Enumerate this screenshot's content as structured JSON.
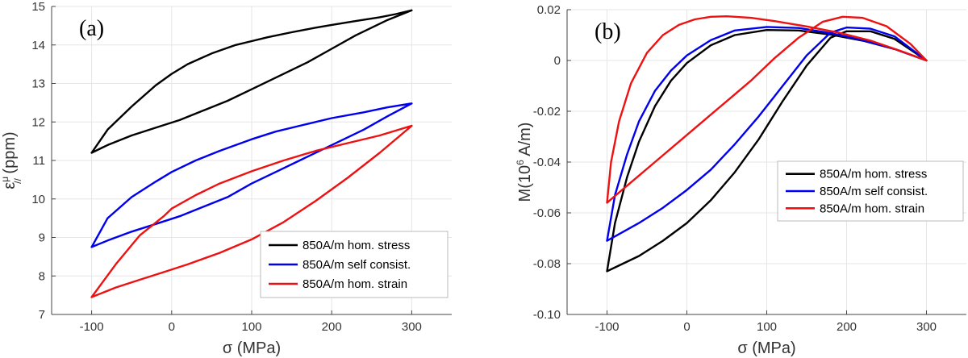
{
  "chart_data": [
    {
      "type": "line",
      "panel_label": "(a)",
      "title": "",
      "xlabel": "σ (MPa)",
      "ylabel": "ε//μ (ppm)",
      "ylabel_parts": {
        "main": "ε",
        "sup": "μ",
        "sub": "//",
        "unit": " (ppm)"
      },
      "xlim": [
        -150,
        350
      ],
      "ylim": [
        7,
        15
      ],
      "xticks": [
        -100,
        0,
        100,
        200,
        300
      ],
      "yticks": [
        7,
        8,
        9,
        10,
        11,
        12,
        13,
        14,
        15
      ],
      "xtick_labels": [
        "-100",
        "0",
        "100",
        "200",
        "300"
      ],
      "ytick_labels": [
        "7",
        "8",
        "9",
        "10",
        "11",
        "12",
        "13",
        "14",
        "15"
      ],
      "grid": true,
      "legend_position": "bottom-right",
      "series": [
        {
          "name": "850A/m hom. stress",
          "color": "#000000",
          "x": [
            -100,
            -80,
            -50,
            -20,
            0,
            20,
            50,
            80,
            100,
            120,
            150,
            180,
            200,
            230,
            260,
            280,
            300,
            270,
            230,
            200,
            170,
            130,
            100,
            70,
            40,
            10,
            -20,
            -50,
            -80,
            -100
          ],
          "y": [
            11.2,
            11.8,
            12.4,
            12.95,
            13.25,
            13.5,
            13.78,
            14.0,
            14.1,
            14.2,
            14.33,
            14.45,
            14.52,
            14.62,
            14.72,
            14.8,
            14.9,
            14.65,
            14.25,
            13.9,
            13.55,
            13.15,
            12.85,
            12.55,
            12.3,
            12.05,
            11.85,
            11.65,
            11.4,
            11.2
          ]
        },
        {
          "name": "850A/m self consist.",
          "color": "#0000ee",
          "x": [
            -100,
            -80,
            -50,
            -20,
            0,
            30,
            60,
            100,
            130,
            160,
            200,
            240,
            270,
            300,
            270,
            240,
            200,
            160,
            130,
            100,
            70,
            40,
            10,
            -20,
            -50,
            -80,
            -100
          ],
          "y": [
            8.75,
            9.5,
            10.05,
            10.45,
            10.7,
            11.0,
            11.25,
            11.55,
            11.75,
            11.9,
            12.1,
            12.25,
            12.38,
            12.48,
            12.15,
            11.8,
            11.4,
            11.0,
            10.7,
            10.4,
            10.05,
            9.8,
            9.55,
            9.35,
            9.15,
            8.92,
            8.75
          ]
        },
        {
          "name": "850A/m hom. strain",
          "color": "#ee1111",
          "x": [
            -100,
            -70,
            -40,
            -10,
            0,
            30,
            60,
            100,
            140,
            180,
            220,
            260,
            300,
            260,
            220,
            180,
            140,
            100,
            60,
            20,
            -10,
            -40,
            -70,
            -100
          ],
          "y": [
            7.45,
            8.3,
            9.05,
            9.55,
            9.75,
            10.1,
            10.4,
            10.72,
            11.0,
            11.25,
            11.45,
            11.65,
            11.9,
            11.2,
            10.55,
            9.95,
            9.4,
            8.95,
            8.6,
            8.3,
            8.1,
            7.9,
            7.7,
            7.45
          ]
        }
      ]
    },
    {
      "type": "line",
      "panel_label": "(b)",
      "title": "",
      "xlabel": "σ (MPa)",
      "ylabel": "M(10⁶ A/m)",
      "ylabel_parts": {
        "main": "M(10",
        "sup": "6",
        "unit": " A/m)"
      },
      "xlim": [
        -150,
        350
      ],
      "ylim": [
        -0.1,
        0.02
      ],
      "xticks": [
        -100,
        0,
        100,
        200,
        300
      ],
      "yticks": [
        -0.1,
        -0.08,
        -0.06,
        -0.04,
        -0.02,
        0,
        0.02
      ],
      "xtick_labels": [
        "-100",
        "0",
        "100",
        "200",
        "300"
      ],
      "ytick_labels": [
        "-0.10",
        "-0.08",
        "-0.06",
        "-0.04",
        "-0.02",
        "0",
        "0.02"
      ],
      "grid": true,
      "legend_position": "middle-right",
      "series": [
        {
          "name": "850A/m hom. stress",
          "color": "#000000",
          "x": [
            -100,
            -90,
            -75,
            -60,
            -40,
            -20,
            0,
            30,
            60,
            100,
            140,
            180,
            220,
            260,
            300,
            260,
            230,
            200,
            180,
            150,
            120,
            90,
            60,
            30,
            0,
            -30,
            -60,
            -100
          ],
          "y": [
            -0.083,
            -0.064,
            -0.046,
            -0.032,
            -0.018,
            -0.008,
            -0.001,
            0.006,
            0.01,
            0.012,
            0.0118,
            0.0102,
            0.0078,
            0.0045,
            0.0,
            0.0085,
            0.0115,
            0.0115,
            0.009,
            -0.002,
            -0.016,
            -0.031,
            -0.044,
            -0.055,
            -0.064,
            -0.071,
            -0.077,
            -0.083
          ]
        },
        {
          "name": "850A/m self consist.",
          "color": "#0000ee",
          "x": [
            -100,
            -90,
            -75,
            -60,
            -40,
            -20,
            0,
            30,
            60,
            100,
            140,
            180,
            220,
            260,
            300,
            260,
            230,
            200,
            180,
            150,
            120,
            90,
            60,
            30,
            0,
            -30,
            -60,
            -100
          ],
          "y": [
            -0.071,
            -0.053,
            -0.037,
            -0.024,
            -0.012,
            -0.004,
            0.002,
            0.008,
            0.0118,
            0.0132,
            0.0128,
            0.0108,
            0.008,
            0.0045,
            0.0,
            0.0095,
            0.0125,
            0.013,
            0.011,
            0.002,
            -0.01,
            -0.022,
            -0.033,
            -0.043,
            -0.051,
            -0.058,
            -0.064,
            -0.071
          ]
        },
        {
          "name": "850A/m hom. strain",
          "color": "#ee1111",
          "x": [
            -100,
            -95,
            -85,
            -70,
            -50,
            -30,
            -10,
            10,
            30,
            50,
            80,
            110,
            150,
            190,
            230,
            270,
            300,
            280,
            250,
            220,
            195,
            170,
            140,
            110,
            80,
            50,
            20,
            -10,
            -40,
            -70,
            -100
          ],
          "y": [
            -0.056,
            -0.04,
            -0.024,
            -0.009,
            0.003,
            0.01,
            0.014,
            0.0162,
            0.0172,
            0.0174,
            0.0168,
            0.0155,
            0.0134,
            0.011,
            0.0078,
            0.0035,
            0.0,
            0.0065,
            0.0135,
            0.0168,
            0.0172,
            0.0152,
            0.009,
            0.001,
            -0.008,
            -0.016,
            -0.024,
            -0.032,
            -0.04,
            -0.048,
            -0.056
          ]
        }
      ]
    }
  ]
}
